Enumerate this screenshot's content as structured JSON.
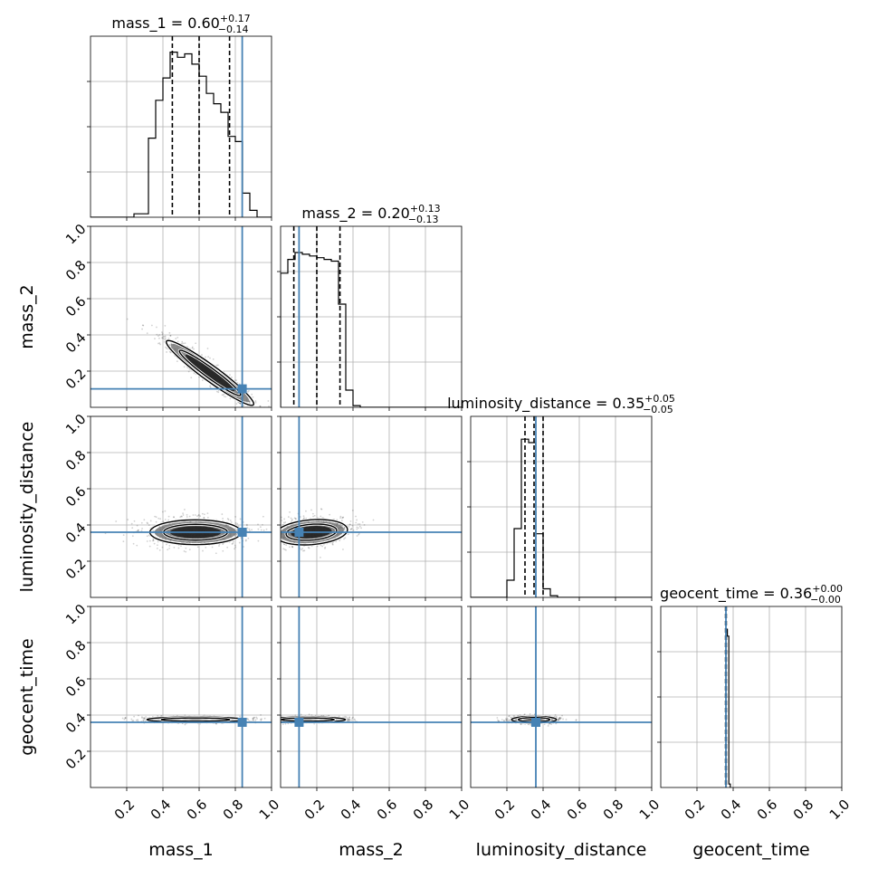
{
  "chart_data": {
    "type": "corner",
    "parameters": [
      {
        "name": "mass_1",
        "median": "0.60",
        "plus": "0.17",
        "minus": "0.14",
        "title_prefix": "mass_1 = "
      },
      {
        "name": "mass_2",
        "median": "0.20",
        "plus": "0.13",
        "minus": "0.13",
        "title_prefix": "mass_2 = "
      },
      {
        "name": "luminosity_distance",
        "median": "0.35",
        "plus": "0.05",
        "minus": "0.05",
        "title_prefix": "luminosity_distance = "
      },
      {
        "name": "geocent_time",
        "median": "0.36",
        "plus": "0.00",
        "minus": "0.00",
        "title_prefix": "geocent_time = "
      }
    ],
    "truths": [
      0.838,
      0.102,
      0.36,
      0.36
    ],
    "quantiles": [
      [
        0.452,
        0.6,
        0.768
      ],
      [
        0.073,
        0.2,
        0.328
      ],
      [
        0.3,
        0.35,
        0.4
      ],
      [
        0.358,
        0.36,
        0.362
      ]
    ],
    "axis_range": [
      0,
      1
    ],
    "ticks": [
      0.2,
      0.4,
      0.6,
      0.8,
      1.0
    ],
    "tick_labels": [
      "0.2",
      "0.4",
      "0.6",
      "0.8",
      "1.0"
    ],
    "y_tick_labels": [
      "0.2",
      "0.4",
      "0.6",
      "0.8",
      "1.0"
    ],
    "grid": true,
    "truth_color": "#4682b4",
    "contour_color": "#000000",
    "histograms": [
      {
        "bins_start": 0.0,
        "bin_width": 0.04,
        "counts": [
          0,
          0,
          0,
          0,
          0,
          0,
          0.02,
          0.02,
          0.46,
          0.68,
          0.81,
          0.96,
          0.93,
          0.95,
          0.89,
          0.82,
          0.72,
          0.66,
          0.61,
          0.47,
          0.44,
          0.14,
          0.04,
          0,
          0
        ]
      },
      {
        "bins_start": 0.0,
        "bin_width": 0.04,
        "counts": [
          0.78,
          0.86,
          0.9,
          0.89,
          0.88,
          0.87,
          0.86,
          0.85,
          0.6,
          0.1,
          0.01,
          0,
          0,
          0,
          0,
          0,
          0,
          0,
          0,
          0,
          0,
          0,
          0,
          0,
          0
        ]
      },
      {
        "bins_start": 0.0,
        "bin_width": 0.04,
        "counts": [
          0,
          0,
          0,
          0,
          0,
          0.1,
          0.4,
          0.92,
          0.9,
          0.37,
          0.05,
          0.01,
          0,
          0,
          0,
          0,
          0,
          0,
          0,
          0,
          0,
          0,
          0,
          0,
          0
        ]
      },
      {
        "bins_start": 0.36,
        "bin_width": 0.008,
        "counts": [
          0.92,
          0.88,
          0.02
        ]
      }
    ],
    "joint_2d": [
      {
        "row": 1,
        "col": 0,
        "shape": "diagonal",
        "x_range": [
          0.35,
          1.0
        ],
        "y_range": [
          0.0,
          0.45
        ]
      },
      {
        "row": 2,
        "col": 0,
        "shape": "ellipse",
        "center": [
          0.58,
          0.36
        ],
        "x_extent": [
          0.33,
          0.96
        ],
        "y_extent": [
          0.27,
          0.46
        ]
      },
      {
        "row": 2,
        "col": 1,
        "shape": "ellipse",
        "center": [
          0.17,
          0.36
        ],
        "x_extent": [
          0.0,
          0.5
        ],
        "y_extent": [
          0.27,
          0.46
        ]
      },
      {
        "row": 3,
        "col": 0,
        "shape": "band",
        "center": [
          0.58,
          0.375
        ],
        "x_extent": [
          0.33,
          1.0
        ],
        "y_extent": [
          0.35,
          0.39
        ]
      },
      {
        "row": 3,
        "col": 1,
        "shape": "band",
        "center": [
          0.15,
          0.375
        ],
        "x_extent": [
          0.0,
          0.52
        ],
        "y_extent": [
          0.35,
          0.39
        ]
      },
      {
        "row": 3,
        "col": 2,
        "shape": "small",
        "center": [
          0.35,
          0.375
        ],
        "x_extent": [
          0.22,
          0.53
        ],
        "y_extent": [
          0.35,
          0.4
        ]
      }
    ]
  }
}
